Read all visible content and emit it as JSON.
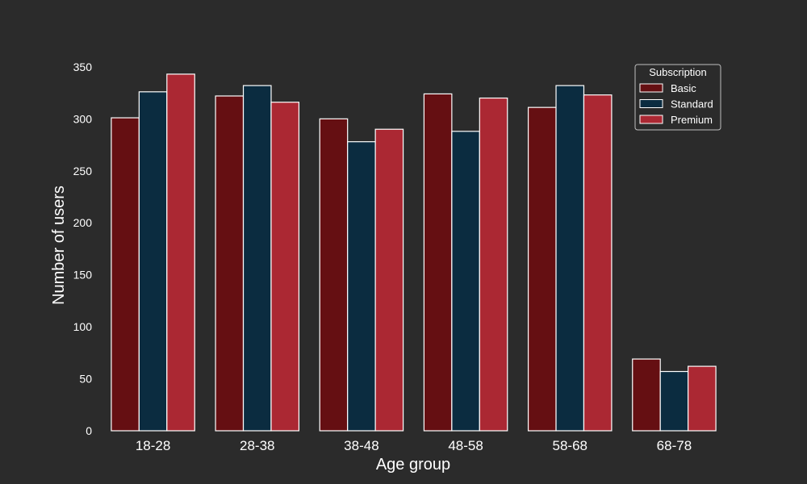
{
  "chart_data": {
    "type": "bar",
    "title": "",
    "xlabel": "Age group",
    "ylabel": "Number of users",
    "categories": [
      "18-28",
      "28-38",
      "38-48",
      "48-58",
      "58-68",
      "68-78"
    ],
    "series": [
      {
        "name": "Basic",
        "color": "#650f12",
        "values": [
          301,
          322,
          300,
          324,
          311,
          69
        ]
      },
      {
        "name": "Standard",
        "color": "#0b2c40",
        "values": [
          326,
          332,
          278,
          288,
          332,
          57
        ]
      },
      {
        "name": "Premium",
        "color": "#ab2833",
        "values": [
          343,
          316,
          290,
          320,
          323,
          62
        ]
      }
    ],
    "ylim": [
      0,
      360
    ],
    "yticks": [
      0,
      50,
      100,
      150,
      200,
      250,
      300,
      350
    ],
    "grid": false,
    "legend": {
      "title": "Subscription",
      "placement": "top-right"
    },
    "colors": {
      "background": "#2b2b2b",
      "text": "#ffffff",
      "bar_edge": "#ffffff"
    }
  }
}
